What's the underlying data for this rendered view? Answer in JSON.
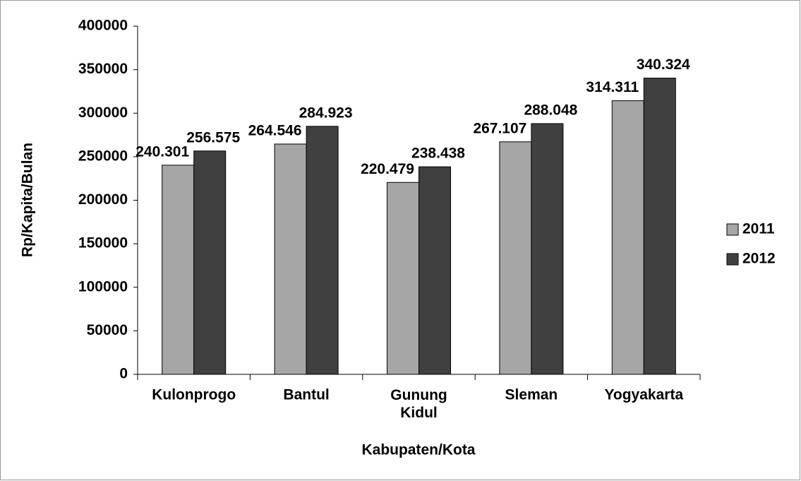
{
  "chart_data": {
    "type": "bar",
    "x_label": "Kabupaten/Kota",
    "y_label": "Rp/Kapita/Bulan",
    "categories": [
      "Kulonprogo",
      "Bantul",
      "Gunung Kidul",
      "Sleman",
      "Yogyakarta"
    ],
    "series": [
      {
        "name": "2011",
        "color": "#a6a6a6",
        "values": [
          240301,
          264546,
          220479,
          267107,
          314311
        ],
        "value_labels": [
          "240.301",
          "264.546",
          "220.479",
          "267.107",
          "314.311"
        ]
      },
      {
        "name": "2012",
        "color": "#404040",
        "values": [
          256575,
          284923,
          238438,
          288048,
          340324
        ],
        "value_labels": [
          "256.575",
          "284.923",
          "238.438",
          "288.048",
          "340.324"
        ]
      }
    ],
    "ylim": [
      0,
      400000
    ],
    "yticks": [
      0,
      50000,
      100000,
      150000,
      200000,
      250000,
      300000,
      350000,
      400000
    ],
    "grid": false,
    "legend": "right"
  }
}
